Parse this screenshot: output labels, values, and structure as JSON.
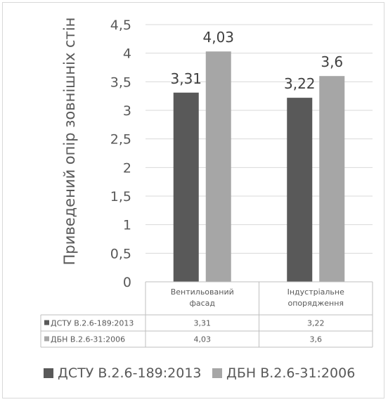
{
  "chart_data": {
    "type": "bar",
    "ylabel": "Приведений опір зовнішніх стін",
    "ylim": [
      0,
      4.5
    ],
    "yticks": [
      "0",
      "0,5",
      "1",
      "1,5",
      "2",
      "2,5",
      "3",
      "3,5",
      "4",
      "4,5"
    ],
    "ytick_values": [
      0,
      0.5,
      1,
      1.5,
      2,
      2.5,
      3,
      3.5,
      4,
      4.5
    ],
    "categories": [
      [
        "Вентильований",
        "фасад"
      ],
      [
        "Індустріальне",
        "опорядження"
      ]
    ],
    "series": [
      {
        "name": "ДСТУ В.2.6-189:2013",
        "values": [
          3.31,
          3.22
        ],
        "labels": [
          "3,31",
          "3,22"
        ],
        "color": "#595959"
      },
      {
        "name": "ДБН В.2.6-31:2006",
        "values": [
          4.03,
          3.6
        ],
        "labels": [
          "4,03",
          "3,6"
        ],
        "color": "#a6a6a6"
      }
    ],
    "grid": true,
    "legend_position": "bottom",
    "data_table": true
  }
}
